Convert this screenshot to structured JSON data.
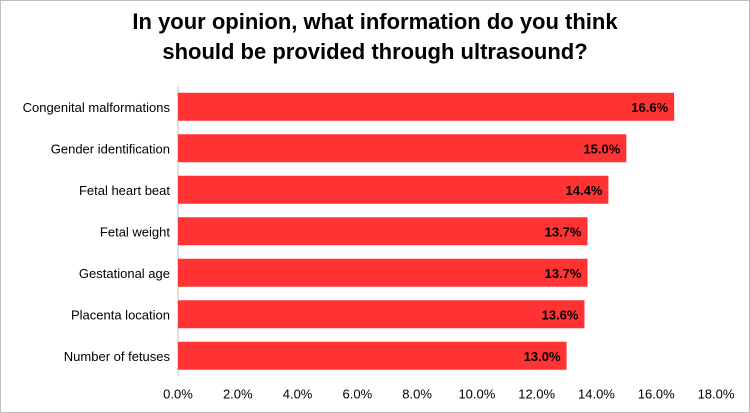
{
  "chart_data": {
    "type": "bar",
    "orientation": "horizontal",
    "title_lines": [
      "In your opinion, what information do you think",
      "should be provided through ultrasound?"
    ],
    "xlabel": "",
    "ylabel": "",
    "categories": [
      "Congenital malformations",
      "Gender identification",
      "Fetal heart beat",
      "Fetal weight",
      "Gestational age",
      "Placenta location",
      "Number of fetuses"
    ],
    "values": [
      16.6,
      15.0,
      14.4,
      13.7,
      13.7,
      13.6,
      13.0
    ],
    "value_labels": [
      "16.6%",
      "15.0%",
      "14.4%",
      "13.7%",
      "13.7%",
      "13.6%",
      "13.0%"
    ],
    "xlim": [
      0,
      18
    ],
    "x_ticks": [
      0,
      2,
      4,
      6,
      8,
      10,
      12,
      14,
      16,
      18
    ],
    "x_tick_labels": [
      "0.0%",
      "2.0%",
      "4.0%",
      "6.0%",
      "8.0%",
      "10.0%",
      "12.0%",
      "14.0%",
      "16.0%",
      "18.0%"
    ],
    "grid": false,
    "legend": "none",
    "bar_color": "#ff3333"
  }
}
